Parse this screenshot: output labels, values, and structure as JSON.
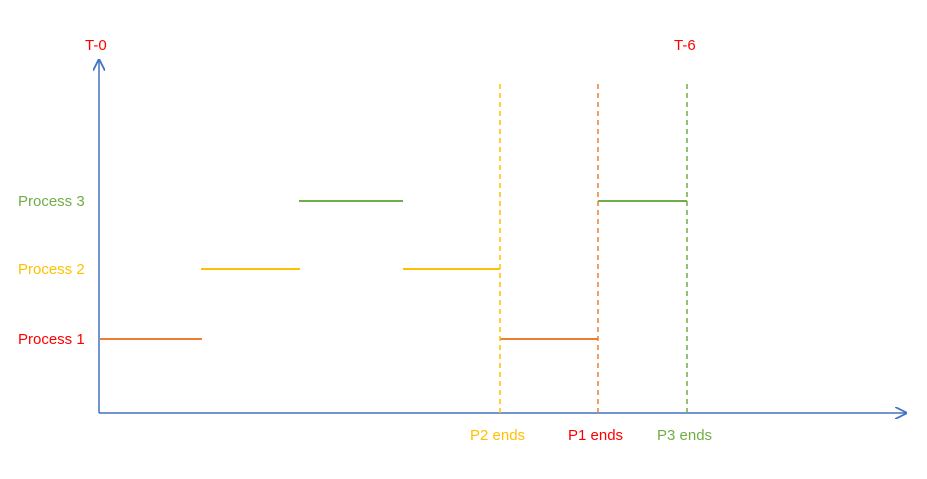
{
  "colors": {
    "axis": "#4472C4",
    "process1": "#ED7D31",
    "process2": "#FFC000",
    "process3": "#70AD47",
    "label_red": "#FF0000"
  },
  "markers": {
    "t0": "T-0",
    "t6": "T-6"
  },
  "processes": [
    {
      "label": "Process 1",
      "label_color": "#FF0000",
      "bar_color": "#ED7D31"
    },
    {
      "label": "Process 2",
      "label_color": "#FFC000",
      "bar_color": "#FFC000"
    },
    {
      "label": "Process 3",
      "label_color": "#70AD47",
      "bar_color": "#70AD47"
    }
  ],
  "end_markers": [
    {
      "label": "P2 ends",
      "color": "#FFC000"
    },
    {
      "label": "P1 ends",
      "color": "#FF0000",
      "line_color": "#ED7D31"
    },
    {
      "label": "P3 ends",
      "color": "#70AD47"
    }
  ]
}
